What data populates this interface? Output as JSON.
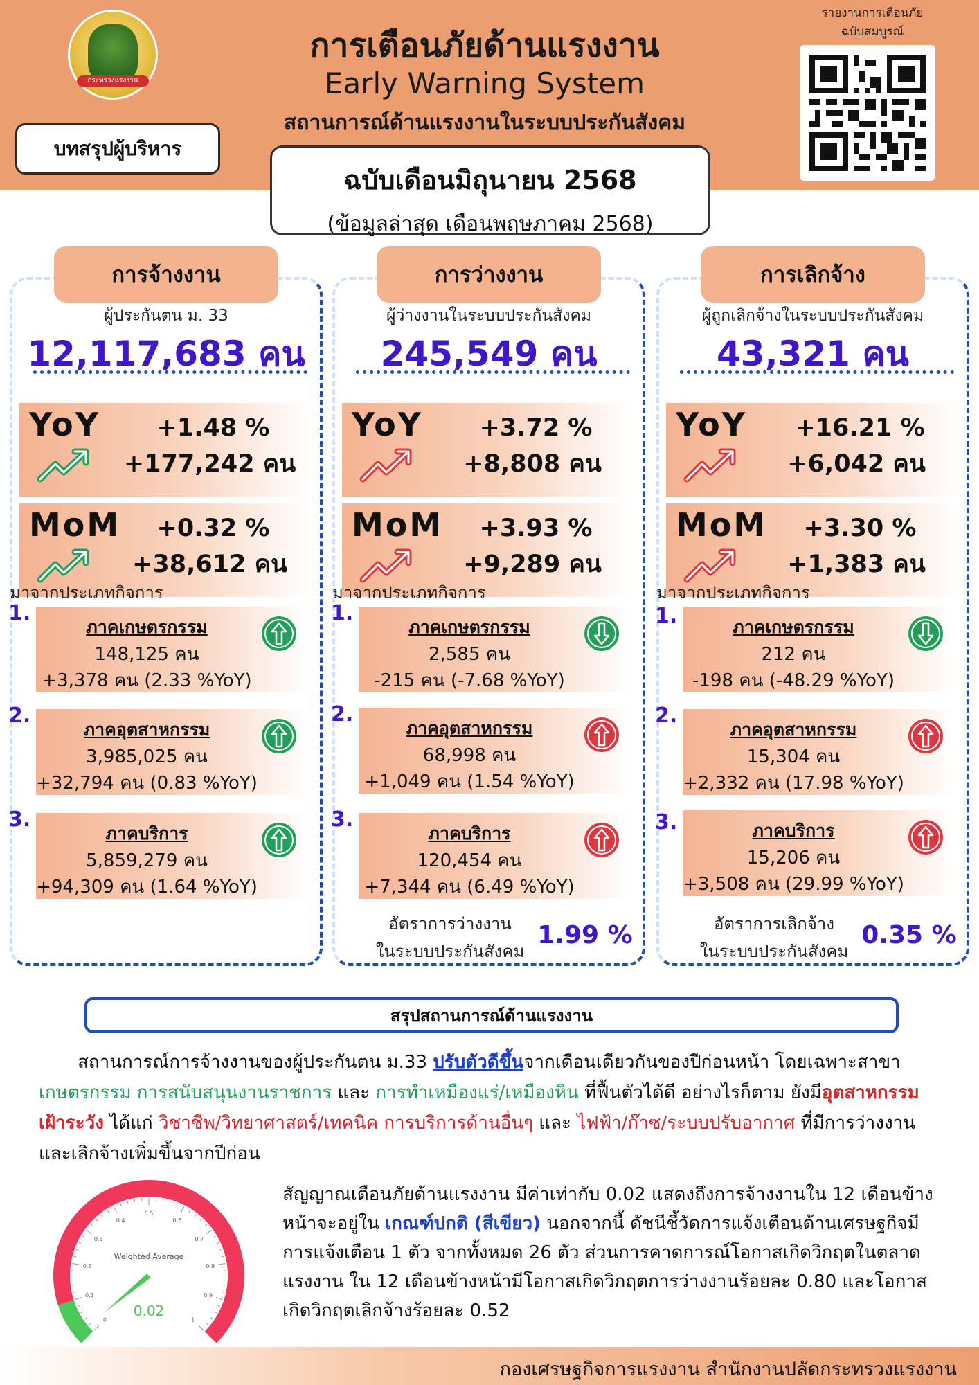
{
  "header": {
    "title_th": "การเตือนภัยด้านแรงงาน",
    "title_en": "Early Warning System",
    "subtitle": "สถานการณ์ด้านแรงงานในระบบประกันสังคม",
    "exec_summary": "บทสรุปผู้บริหาร",
    "edition": "ฉบับเดือนมิถุนายน 2568",
    "latest_data": "(ข้อมูลล่าสุด เดือนพฤษภาคม 2568)",
    "qr_caption_1": "รายงานการเตือนภัย",
    "qr_caption_2": "ฉบับสมบูรณ์",
    "logo_text": "กระทรวงแรงงาน"
  },
  "columns": [
    {
      "category": "การจ้างงาน",
      "sub": "ผู้ประกันตน ม. 33",
      "big": "12,117,683 คน",
      "yoy": {
        "label": "YoY",
        "pct": "+1.48 %",
        "abs": "+177,242 คน",
        "direction": "up",
        "color": "#22a05a"
      },
      "mom": {
        "label": "MoM",
        "pct": "+0.32 %",
        "abs": "+38,612 คน",
        "direction": "up",
        "color": "#22a05a"
      },
      "from": "มาจากประเภทกิจการ",
      "sectors": [
        {
          "num": "1.",
          "name": "ภาคเกษตรกรรม",
          "count": "148,125 คน",
          "change": "+3,378 คน (2.33 %YoY)",
          "direction": "up",
          "color": "#22a05a"
        },
        {
          "num": "2.",
          "name": "ภาคอุตสาหกรรม",
          "count": "3,985,025 คน",
          "change": "+32,794 คน (0.83 %YoY)",
          "direction": "up",
          "color": "#22a05a"
        },
        {
          "num": "3.",
          "name": "ภาคบริการ",
          "count": "5,859,279 คน",
          "change": "+94,309 คน (1.64 %YoY)",
          "direction": "up",
          "color": "#22a05a"
        }
      ],
      "rate_label_1": "",
      "rate_label_2": "",
      "rate_value": ""
    },
    {
      "category": "การว่างงาน",
      "sub": "ผู้ว่างงานในระบบประกันสังคม",
      "big": "245,549 คน",
      "yoy": {
        "label": "YoY",
        "pct": "+3.72 %",
        "abs": "+8,808 คน",
        "direction": "up",
        "color": "#e0373f"
      },
      "mom": {
        "label": "MoM",
        "pct": "+3.93 %",
        "abs": "+9,289 คน",
        "direction": "up",
        "color": "#e0373f"
      },
      "from": "มาจากประเภทกิจการ",
      "sectors": [
        {
          "num": "1.",
          "name": "ภาคเกษตรกรรม",
          "count": "2,585 คน",
          "change": "-215 คน (-7.68 %YoY)",
          "direction": "down",
          "color": "#22a05a"
        },
        {
          "num": "2.",
          "name": "ภาคอุตสาหกรรม",
          "count": "68,998 คน",
          "change": "+1,049 คน (1.54 %YoY)",
          "direction": "up",
          "color": "#e0373f"
        },
        {
          "num": "3.",
          "name": "ภาคบริการ",
          "count": "120,454 คน",
          "change": "+7,344 คน (6.49 %YoY)",
          "direction": "up",
          "color": "#e0373f"
        }
      ],
      "rate_label_1": "อัตราการว่างงาน",
      "rate_label_2": "ในระบบประกันสังคม",
      "rate_value": "1.99 %"
    },
    {
      "category": "การเลิกจ้าง",
      "sub": "ผู้ถูกเลิกจ้างในระบบประกันสังคม",
      "big": "43,321 คน",
      "yoy": {
        "label": "YoY",
        "pct": "+16.21 %",
        "abs": "+6,042 คน",
        "direction": "up",
        "color": "#e0373f"
      },
      "mom": {
        "label": "MoM",
        "pct": "+3.30 %",
        "abs": "+1,383 คน",
        "direction": "up",
        "color": "#e0373f"
      },
      "from": "มาจากประเภทกิจการ",
      "sectors": [
        {
          "num": "1.",
          "name": "ภาคเกษตรกรรม",
          "count": "212 คน",
          "change": "-198 คน (-48.29 %YoY)",
          "direction": "down",
          "color": "#22a05a"
        },
        {
          "num": "2.",
          "name": "ภาคอุตสาหกรรม",
          "count": "15,304 คน",
          "change": "+2,332 คน (17.98 %YoY)",
          "direction": "up",
          "color": "#e0373f"
        },
        {
          "num": "3.",
          "name": "ภาคบริการ",
          "count": "15,206 คน",
          "change": "+3,508 คน (29.99 %YoY)",
          "direction": "up",
          "color": "#e0373f"
        }
      ],
      "rate_label_1": "อัตราการเลิกจ้าง",
      "rate_label_2": "ในระบบประกันสังคม",
      "rate_value": "0.35 %"
    }
  ],
  "summary": {
    "heading": "สรุปสถานการณ์ด้านแรงงาน",
    "p1_a": "สถานการณ์การจ้างงานของผู้ประกันตน ม.33 ",
    "p1_b": "ปรับตัวดีขึ้น",
    "p1_c": "จากเดือนเดียวกันของปีก่อนหน้า โดยเฉพาะสาขา ",
    "p1_d": "เกษตรกรรม การสนับสนุนงานราชการ",
    "p1_e": " และ ",
    "p1_f": "การทำเหมืองแร่/เหมืองหิน",
    "p1_g": " ที่ฟื้นตัวได้ดี อย่างไรก็ตาม ยังมี",
    "p1_h": "อุตสาหกรรมเฝ้าระวัง",
    "p1_i": " ได้แก่ ",
    "p1_j": "วิชาชีพ/วิทยาศาสตร์/เทคนิค การบริการด้านอื่นๆ",
    "p1_k": " และ ",
    "p1_l": "ไฟฟ้า/ก๊าซ/ระบบปรับอากาศ",
    "p1_m": " ที่มีการว่างงานและเลิกจ้างเพิ่มขึ้นจากปีก่อน",
    "p2_a": "สัญญาณเตือนภัยด้านแรงงาน มีค่าเท่ากับ 0.02 แสดงถึงการจ้างงานใน 12 เดือนข้างหน้าจะอยู่ใน ",
    "p2_b": "เกณฑ์ปกติ (สีเขียว)",
    "p2_c": " นอกจากนี้ ดัชนีชี้วัดการแจ้งเตือนด้านเศรษฐกิจมีการแจ้งเตือน 1 ตัว จากทั้งหมด 26 ตัว ส่วนการคาดการณ์โอกาสเกิดวิกฤตในตลาดแรงงาน ใน 12 เดือนข้างหน้ามีโอกาสเกิดวิกฤตการว่างงานร้อยละ 0.80 และโอกาสเกิดวิกฤตเลิกจ้างร้อยละ 0.52"
  },
  "gauge": {
    "title": "Weighted Average",
    "value": 0.02,
    "value_label": "0.02",
    "min": 0,
    "max": 1,
    "ticks": [
      "0",
      "0.1",
      "0.2",
      "0.3",
      "0.4",
      "0.5",
      "0.6",
      "0.7",
      "0.8",
      "0.9",
      "1"
    ],
    "green_until": 0.1,
    "green": "#4cc75a",
    "red": "#f0385a"
  },
  "footer": {
    "text": "กองเศรษฐกิจการแรงงาน สำนักงานปลัดกระทรวงแรงงาน"
  },
  "colors": {
    "header_bg": "#ec9e70",
    "accent_blue": "#1f4fb5",
    "value_purple": "#3f16c9",
    "up_green": "#22a05a",
    "up_red": "#e0373f"
  }
}
